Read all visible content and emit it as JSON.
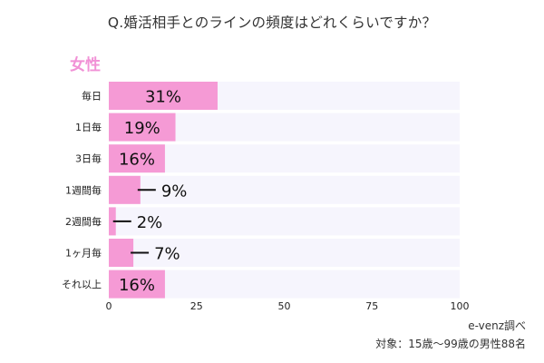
{
  "title": "Q.婚活相手とのラインの頻度はどれくらいですか？",
  "subgroup": "女性",
  "source": "e-venz調べ",
  "note": "対象：15歳〜99歳の男性88名",
  "colors": {
    "bar": "#f59ad5",
    "band": "#f6f5fd",
    "subgroup": "#f191d6"
  },
  "chart_data": {
    "type": "bar",
    "orientation": "horizontal",
    "categories": [
      "毎日",
      "1日毎",
      "3日毎",
      "1週間毎",
      "2週間毎",
      "1ヶ月毎",
      "それ以上"
    ],
    "values": [
      31,
      19,
      16,
      9,
      2,
      7,
      16
    ],
    "value_labels": [
      "31%",
      "19%",
      "16%",
      "9%",
      "2%",
      "7%",
      "16%"
    ],
    "xlim": [
      0,
      100
    ],
    "xticks": [
      0,
      25,
      50,
      75,
      100
    ],
    "grid": false,
    "legend": "none"
  }
}
